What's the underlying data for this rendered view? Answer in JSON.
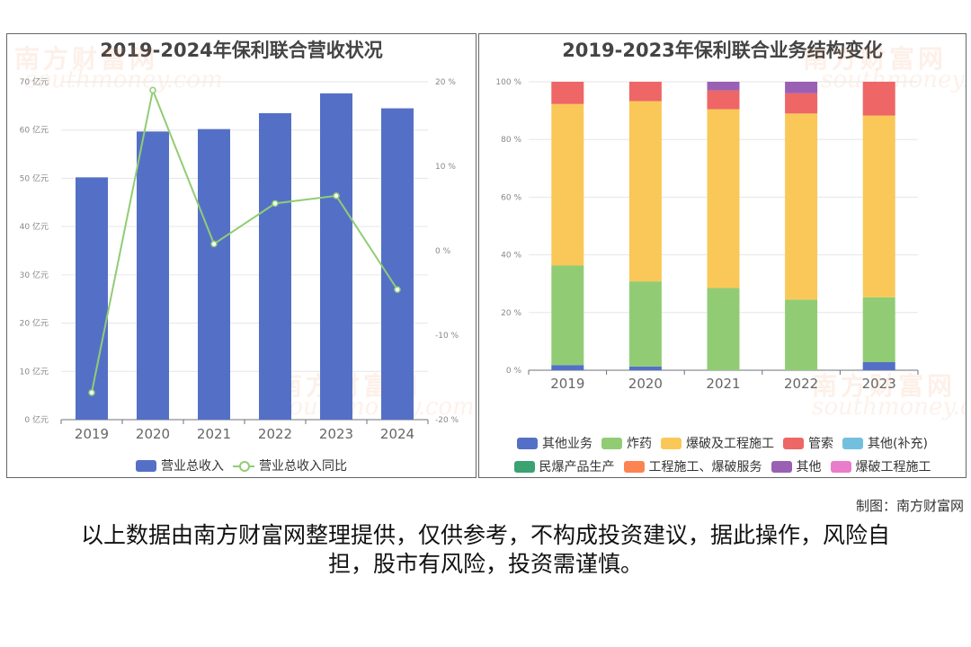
{
  "left_chart": {
    "title": "2019-2024年保利联合营收状况",
    "legend": {
      "bar_label": "营业总收入",
      "line_label": "营业总收入同比"
    }
  },
  "right_chart": {
    "title": "2019-2023年保利联合业务结构变化",
    "legend": [
      "其他业务",
      "炸药",
      "爆破及工程施工",
      "管索",
      "其他(补充)",
      "民爆产品生产",
      "工程施工、爆破服务",
      "其他",
      "爆破工程施工"
    ]
  },
  "watermark": {
    "cn": "南方财富网",
    "en": "southmoney.com"
  },
  "credit": "制图：南方财富网",
  "disclaimer": "以上数据由南方财富网整理提供，仅供参考，不构成投资建议，据此操作，风险自担，股市有风险，投资需谨慎。",
  "chart_data": [
    {
      "type": "bar",
      "title": "2019-2024年保利联合营收状况",
      "categories": [
        "2019",
        "2020",
        "2021",
        "2022",
        "2023",
        "2024"
      ],
      "series": [
        {
          "name": "营业总收入",
          "type": "bar",
          "axis": "left",
          "color": "#5470c6",
          "values": [
            50.2,
            59.7,
            60.2,
            63.5,
            67.6,
            64.5
          ]
        },
        {
          "name": "营业总收入同比",
          "type": "line",
          "axis": "right",
          "color": "#91cc75",
          "values": [
            -16.8,
            19.0,
            0.8,
            5.6,
            6.5,
            -4.6
          ]
        }
      ],
      "y_left": {
        "min": 0,
        "max": 70,
        "step": 10,
        "unit": "亿元"
      },
      "y_right": {
        "min": -20,
        "max": 20,
        "step": 10,
        "unit": "%"
      },
      "grid": true,
      "legend_position": "bottom"
    },
    {
      "type": "bar",
      "stacked": true,
      "title": "2019-2023年保利联合业务结构变化",
      "categories": [
        "2019",
        "2020",
        "2021",
        "2022",
        "2023"
      ],
      "series": [
        {
          "name": "其他业务",
          "color": "#5470c6",
          "values": [
            1.8,
            1.3,
            0,
            0,
            2.8
          ]
        },
        {
          "name": "炸药",
          "color": "#91cc75",
          "values": [
            34.5,
            29.5,
            28.5,
            24.5,
            22.5
          ]
        },
        {
          "name": "爆破及工程施工",
          "color": "#fac858",
          "values": [
            56.0,
            62.5,
            62.0,
            64.5,
            63.0
          ]
        },
        {
          "name": "管索",
          "color": "#ee6666",
          "values": [
            7.7,
            6.7,
            6.5,
            7.0,
            11.7
          ]
        },
        {
          "name": "其他(补充)",
          "color": "#73c0de",
          "values": [
            0,
            0,
            0,
            0,
            0
          ]
        },
        {
          "name": "民爆产品生产",
          "color": "#3ba272",
          "values": [
            0,
            0,
            0,
            0,
            0
          ]
        },
        {
          "name": "工程施工、爆破服务",
          "color": "#fc8452",
          "values": [
            0,
            0,
            0,
            0,
            0
          ]
        },
        {
          "name": "其他",
          "color": "#9a60b4",
          "values": [
            0,
            0,
            3.0,
            4.0,
            0
          ]
        },
        {
          "name": "爆破工程施工",
          "color": "#ea7ccc",
          "values": [
            0,
            0,
            0,
            0,
            0
          ]
        }
      ],
      "y": {
        "min": 0,
        "max": 100,
        "step": 20,
        "unit": "%"
      },
      "grid": true,
      "legend_position": "bottom"
    }
  ]
}
